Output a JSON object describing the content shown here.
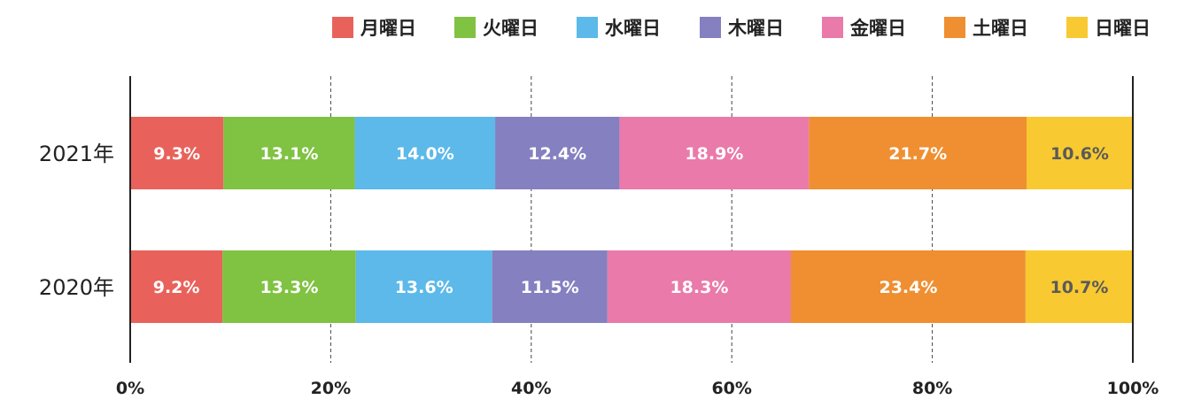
{
  "chart_data": {
    "type": "bar",
    "orientation": "horizontal",
    "stacked": true,
    "percent": true,
    "categories": [
      "2021年",
      "2020年"
    ],
    "series": [
      {
        "name": "月曜日",
        "color": "#e8625b",
        "values": [
          9.3,
          9.2
        ]
      },
      {
        "name": "火曜日",
        "color": "#80c242",
        "values": [
          13.1,
          13.3
        ]
      },
      {
        "name": "水曜日",
        "color": "#5cb9e9",
        "values": [
          14.0,
          13.6
        ]
      },
      {
        "name": "木曜日",
        "color": "#8580c0",
        "values": [
          12.4,
          11.5
        ]
      },
      {
        "name": "金曜日",
        "color": "#ea7aaa",
        "values": [
          18.9,
          18.3
        ]
      },
      {
        "name": "土曜日",
        "color": "#ef8f31",
        "values": [
          21.7,
          23.4
        ]
      },
      {
        "name": "日曜日",
        "color": "#f8c930",
        "values": [
          10.6,
          10.7
        ]
      }
    ],
    "data_labels": [
      [
        "9.3%",
        "13.1%",
        "14.0%",
        "12.4%",
        "18.9%",
        "21.7%",
        "10.6%"
      ],
      [
        "9.2%",
        "13.3%",
        "13.6%",
        "11.5%",
        "18.3%",
        "23.4%",
        "10.7%"
      ]
    ],
    "x_ticks": [
      "0%",
      "20%",
      "40%",
      "60%",
      "80%",
      "100%"
    ],
    "x_tick_values": [
      0,
      20,
      40,
      60,
      80,
      100
    ],
    "xlim": [
      0,
      100
    ],
    "grid": "vertical dashed",
    "legend_position": "top-right",
    "label_color_dark": "#5a5a5a",
    "label_color_light": "#ffffff"
  }
}
